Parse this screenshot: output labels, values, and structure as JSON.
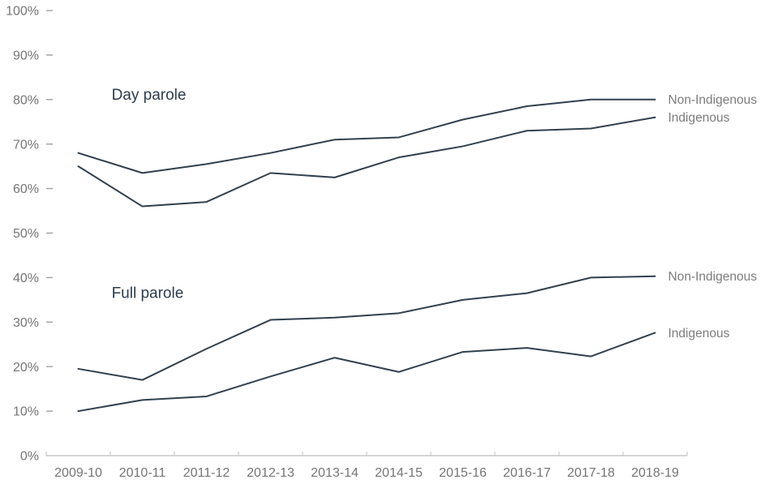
{
  "chart_data": {
    "type": "line",
    "title": "",
    "xlabel": "",
    "ylabel": "",
    "grid": false,
    "legend_position": "line-end-labels",
    "categories": [
      "2009-10",
      "2010-11",
      "2011-12",
      "2012-13",
      "2013-14",
      "2014-15",
      "2015-16",
      "2016-17",
      "2017-18",
      "2018-19"
    ],
    "y_axis": {
      "min": 0,
      "max": 100,
      "step": 10,
      "suffix": "%"
    },
    "groups": [
      {
        "label": "Day parole",
        "label_pos": {
          "x_units": 1.02,
          "y_value": 81.2
        },
        "series": [
          {
            "name": "Non-Indigenous",
            "values": [
              68,
              63.5,
              65.5,
              68,
              71,
              71.5,
              75.5,
              78.5,
              80,
              80
            ]
          },
          {
            "name": "Indigenous",
            "values": [
              65,
              56,
              57,
              63.5,
              62.5,
              67,
              69.5,
              73,
              73.5,
              76
            ]
          }
        ]
      },
      {
        "label": "Full parole",
        "label_pos": {
          "x_units": 1.02,
          "y_value": 36.6
        },
        "series": [
          {
            "name": "Non-Indigenous",
            "values": [
              19.5,
              17,
              24,
              30.5,
              31,
              32,
              35,
              36.5,
              40,
              40.3
            ]
          },
          {
            "name": "Indigenous",
            "values": [
              10,
              12.5,
              13.3,
              17.8,
              22,
              18.8,
              23.3,
              24.2,
              22.3,
              27.6
            ]
          }
        ]
      }
    ],
    "colors": {
      "line": "#31404f",
      "group_label": "#2d3b4c",
      "series_end_label": "#7d7d7d",
      "axis_text": "#757575",
      "axis_line": "#c9c9c9",
      "y_tick_dash": "#a0a0a0"
    }
  }
}
